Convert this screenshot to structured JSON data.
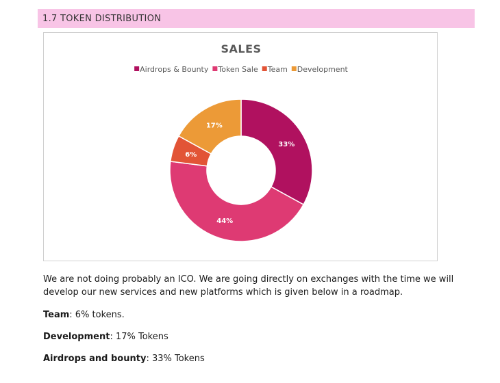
{
  "section": {
    "title": "1.7 TOKEN DISTRIBUTION"
  },
  "chart_data": {
    "type": "pie",
    "title": "SALES",
    "legend_position": "top",
    "slices": [
      {
        "label": "Airdrops & Bounty",
        "value": 33,
        "display": "33%",
        "color": "#b0115f"
      },
      {
        "label": "Token Sale",
        "value": 44,
        "display": "44%",
        "color": "#de3a73"
      },
      {
        "label": "Team",
        "value": 6,
        "display": "6%",
        "color": "#e25436"
      },
      {
        "label": "Development",
        "value": 17,
        "display": "17%",
        "color": "#ec9a37"
      }
    ]
  },
  "paragraph": "We are not doing probably an ICO. We are going directly on exchanges with the time we will develop our new services and new platforms which is given below in a roadmap.",
  "items": [
    {
      "label": "Team",
      "value": ": 6% tokens."
    },
    {
      "label": "Development",
      "value": ": 17% Tokens"
    },
    {
      "label": "Airdrops and bounty",
      "value": ": 33% Tokens"
    }
  ]
}
